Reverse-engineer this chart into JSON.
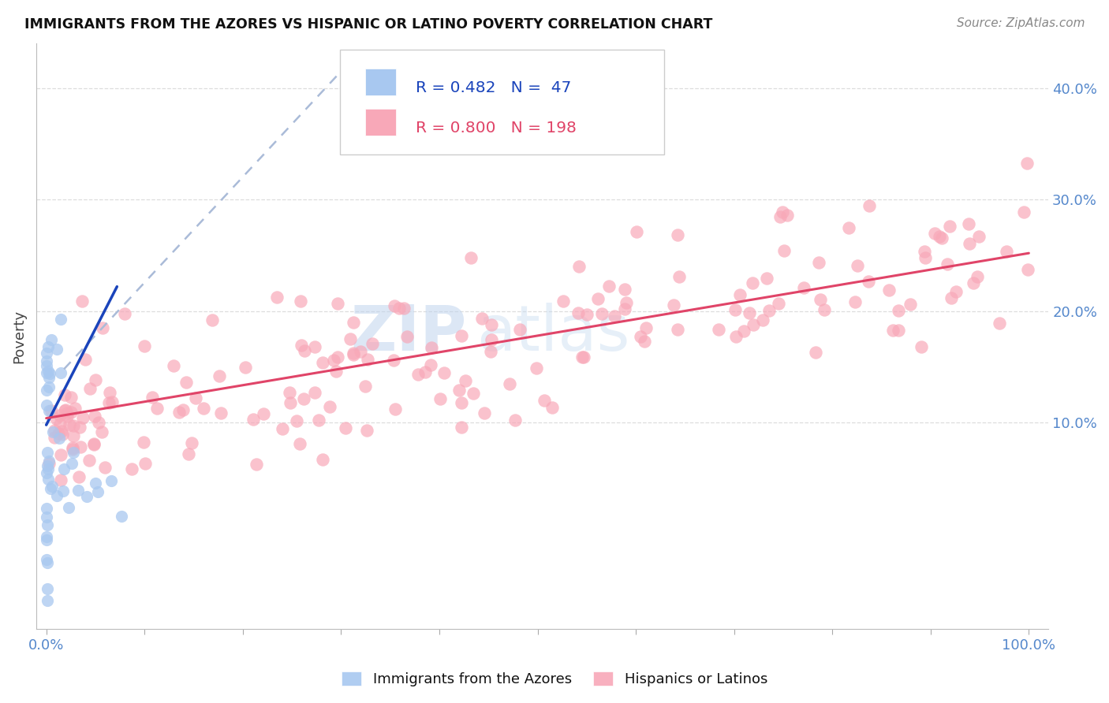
{
  "title": "IMMIGRANTS FROM THE AZORES VS HISPANIC OR LATINO POVERTY CORRELATION CHART",
  "source": "Source: ZipAtlas.com",
  "ylabel": "Poverty",
  "ytick_labels_right": [
    "10.0%",
    "20.0%",
    "30.0%",
    "40.0%"
  ],
  "ytick_values": [
    0.1,
    0.2,
    0.3,
    0.4
  ],
  "xtick_labels": [
    "0.0%",
    "100.0%"
  ],
  "xtick_values": [
    0.0,
    1.0
  ],
  "xlim": [
    -0.01,
    1.02
  ],
  "ylim": [
    -0.085,
    0.44
  ],
  "legend_blue_r": "0.482",
  "legend_blue_n": " 47",
  "legend_pink_r": "0.800",
  "legend_pink_n": "198",
  "blue_scatter_color": "#A8C8F0",
  "pink_scatter_color": "#F8A8B8",
  "blue_line_color": "#1A44BB",
  "pink_line_color": "#E04468",
  "dashed_line_color": "#AABBD8",
  "grid_color": "#DDDDDD",
  "tick_label_color": "#5588CC",
  "title_color": "#111111",
  "source_color": "#888888",
  "ylabel_color": "#444444",
  "watermark_zip_color": "#C0D4EE",
  "watermark_atlas_color": "#C8DCF0",
  "legend_edge_color": "#CCCCCC",
  "blue_line_x": [
    0.0,
    0.072
  ],
  "blue_line_y": [
    0.098,
    0.222
  ],
  "dash_line_x": [
    0.018,
    0.3
  ],
  "dash_line_y": [
    0.148,
    0.415
  ],
  "pink_line_x": [
    0.0,
    1.0
  ],
  "pink_line_y": [
    0.104,
    0.252
  ]
}
